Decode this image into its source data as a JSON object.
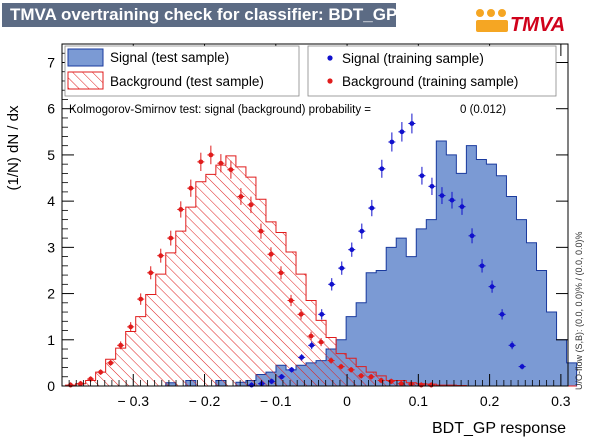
{
  "header": {
    "title": "TMVA overtraining check for classifier: BDT_GP",
    "logo_text": "TMVA"
  },
  "legend": {
    "signal_test": "Signal (test sample)",
    "background_test": "Background (test sample)",
    "signal_train": "Signal (training sample)",
    "background_train": "Background (training sample)"
  },
  "ks_text": "Kolmogorov-Smirnov test: signal (background) probability =",
  "ks_value": "0 (0.012)",
  "overflow_text": "U/O-flow (S,B): (0.0, 0.0)% / (0.0, 0.0)%",
  "colors": {
    "title_bg": "#5c6b84",
    "signal_fill": "#7b9ad4",
    "signal_line": "#1a3a9e",
    "background": "#e01c1c",
    "signal_marker": "#1010cc",
    "background_marker": "#e01c1c",
    "logo_orange": "#f5a623",
    "logo_red": "#d0021b"
  },
  "chart_data": {
    "type": "histogram",
    "xlabel": "BDT_GP response",
    "ylabel": "(1/N) dN / dx",
    "xlim": [
      -0.4,
      0.31
    ],
    "ylim": [
      0,
      7.4
    ],
    "xticks": [
      {
        "v": -0.3,
        "label": "− 0.3"
      },
      {
        "v": -0.2,
        "label": "− 0.2"
      },
      {
        "v": -0.1,
        "label": "− 0.1"
      },
      {
        "v": 0,
        "label": "0"
      },
      {
        "v": 0.1,
        "label": "0.1"
      },
      {
        "v": 0.2,
        "label": "0.2"
      },
      {
        "v": 0.3,
        "label": "0.3"
      }
    ],
    "yticks": [
      0,
      1,
      2,
      3,
      4,
      5,
      6,
      7
    ],
    "bin_edges_start": -0.395,
    "bin_width": 0.01406,
    "signal_test": [
      0,
      0,
      0,
      0,
      0,
      0,
      0,
      0,
      0,
      0,
      0.07,
      0,
      0.12,
      0,
      0,
      0.12,
      0,
      0.08,
      0.12,
      0.25,
      0.3,
      0.45,
      0.35,
      0.45,
      0.5,
      0.55,
      0.8,
      1.0,
      1.5,
      1.8,
      2.45,
      2.5,
      3.0,
      3.2,
      2.8,
      3.4,
      3.6,
      5.3,
      5.0,
      4.6,
      5.2,
      4.9,
      4.8,
      4.55,
      4.1,
      3.6,
      3.1,
      2.5,
      1.6,
      1.0,
      0.5
    ],
    "background_test": [
      0.02,
      0.05,
      0.12,
      0.3,
      0.58,
      0.82,
      1.18,
      1.5,
      1.98,
      2.42,
      2.88,
      3.35,
      3.87,
      4.42,
      4.58,
      4.78,
      4.98,
      4.74,
      4.52,
      4.04,
      3.55,
      3.32,
      2.9,
      2.42,
      1.85,
      1.42,
      1.05,
      0.7,
      0.6,
      0.42,
      0.3,
      0.22,
      0.12,
      0.12,
      0.07,
      0.05,
      0.04,
      0.02,
      0.02,
      0.01,
      0,
      0,
      0,
      0,
      0,
      0,
      0,
      0,
      0,
      0,
      0
    ],
    "signal_train": [
      0,
      0,
      0,
      0,
      0,
      0,
      0,
      0,
      0,
      0,
      0,
      0,
      0,
      0,
      0,
      0,
      0,
      0.02,
      0.05,
      0.1,
      0.2,
      0.35,
      0.62,
      0.88,
      1.55,
      2.2,
      2.55,
      2.95,
      3.35,
      3.85,
      4.7,
      5.28,
      5.5,
      5.68,
      4.55,
      4.32,
      4.12,
      4.02,
      3.88,
      3.25,
      2.6,
      2.15,
      1.55,
      0.88,
      0.42
    ],
    "signal_train_x_start": -0.373,
    "background_train": [
      0.02,
      0.05,
      0.15,
      0.3,
      0.5,
      0.88,
      1.28,
      1.88,
      2.45,
      2.82,
      3.2,
      3.82,
      4.28,
      4.85,
      5.0,
      4.82,
      4.68,
      4.1,
      3.92,
      3.35,
      2.85,
      2.45,
      1.85,
      1.55,
      1.08,
      0.95,
      0.55,
      0.42,
      0.35,
      0.22,
      0.2,
      0.12,
      0.1,
      0.05,
      0.04,
      0.02,
      0.02
    ]
  }
}
